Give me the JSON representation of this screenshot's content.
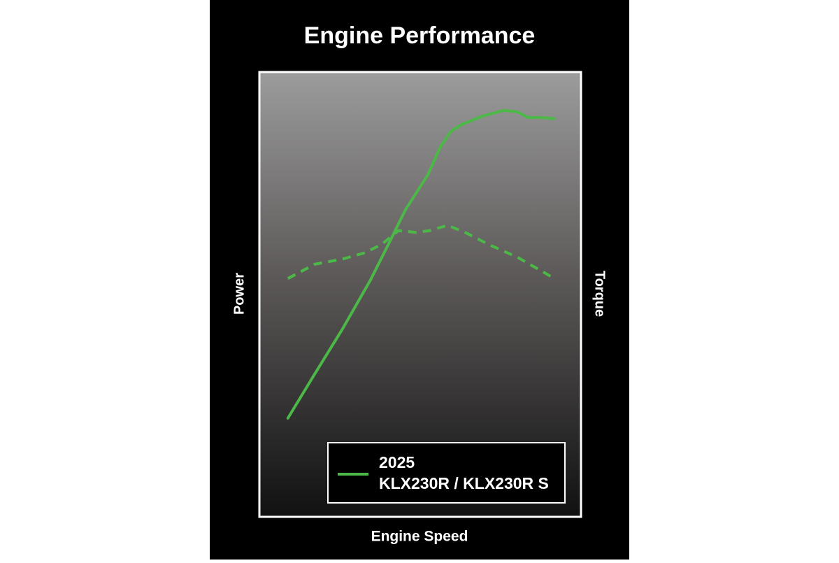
{
  "chart_data": {
    "type": "line",
    "title": "Engine Performance",
    "xlabel": "Engine Speed",
    "ylabel": "Power",
    "y2label": "Torque",
    "legend": [
      "2025",
      "KLX230R / KLX230R S"
    ],
    "color": "#4cb847",
    "xlim": [
      0,
      100
    ],
    "ylim": [
      0,
      100
    ],
    "y2lim": [
      0,
      100
    ],
    "series": [
      {
        "color": "#4cb847",
        "x": [
          8.7,
          17.0,
          25.8,
          34.5,
          40.0,
          45.4,
          52.4,
          56.3,
          59.6,
          62.9,
          69.4,
          76.0,
          80.3,
          83.6,
          88.0,
          91.9
        ],
        "values": [
          22.1,
          32.0,
          42.3,
          53.3,
          61.2,
          69.1,
          77.0,
          83.3,
          86.8,
          88.3,
          90.2,
          91.5,
          91.2,
          89.9,
          89.9,
          89.6
        ]
      },
      {
        "color": "#4cb847",
        "axis": "y2",
        "dashed": true,
        "x": [
          8.7,
          17.0,
          25.8,
          32.3,
          37.8,
          43.2,
          48.7,
          53.1,
          58.5,
          64.0,
          71.6,
          80.3,
          86.9,
          91.9
        ],
        "values": [
          53.6,
          56.8,
          58.0,
          59.3,
          61.2,
          64.4,
          64.0,
          64.4,
          65.6,
          64.0,
          61.2,
          58.4,
          55.7,
          53.6
        ]
      }
    ]
  }
}
